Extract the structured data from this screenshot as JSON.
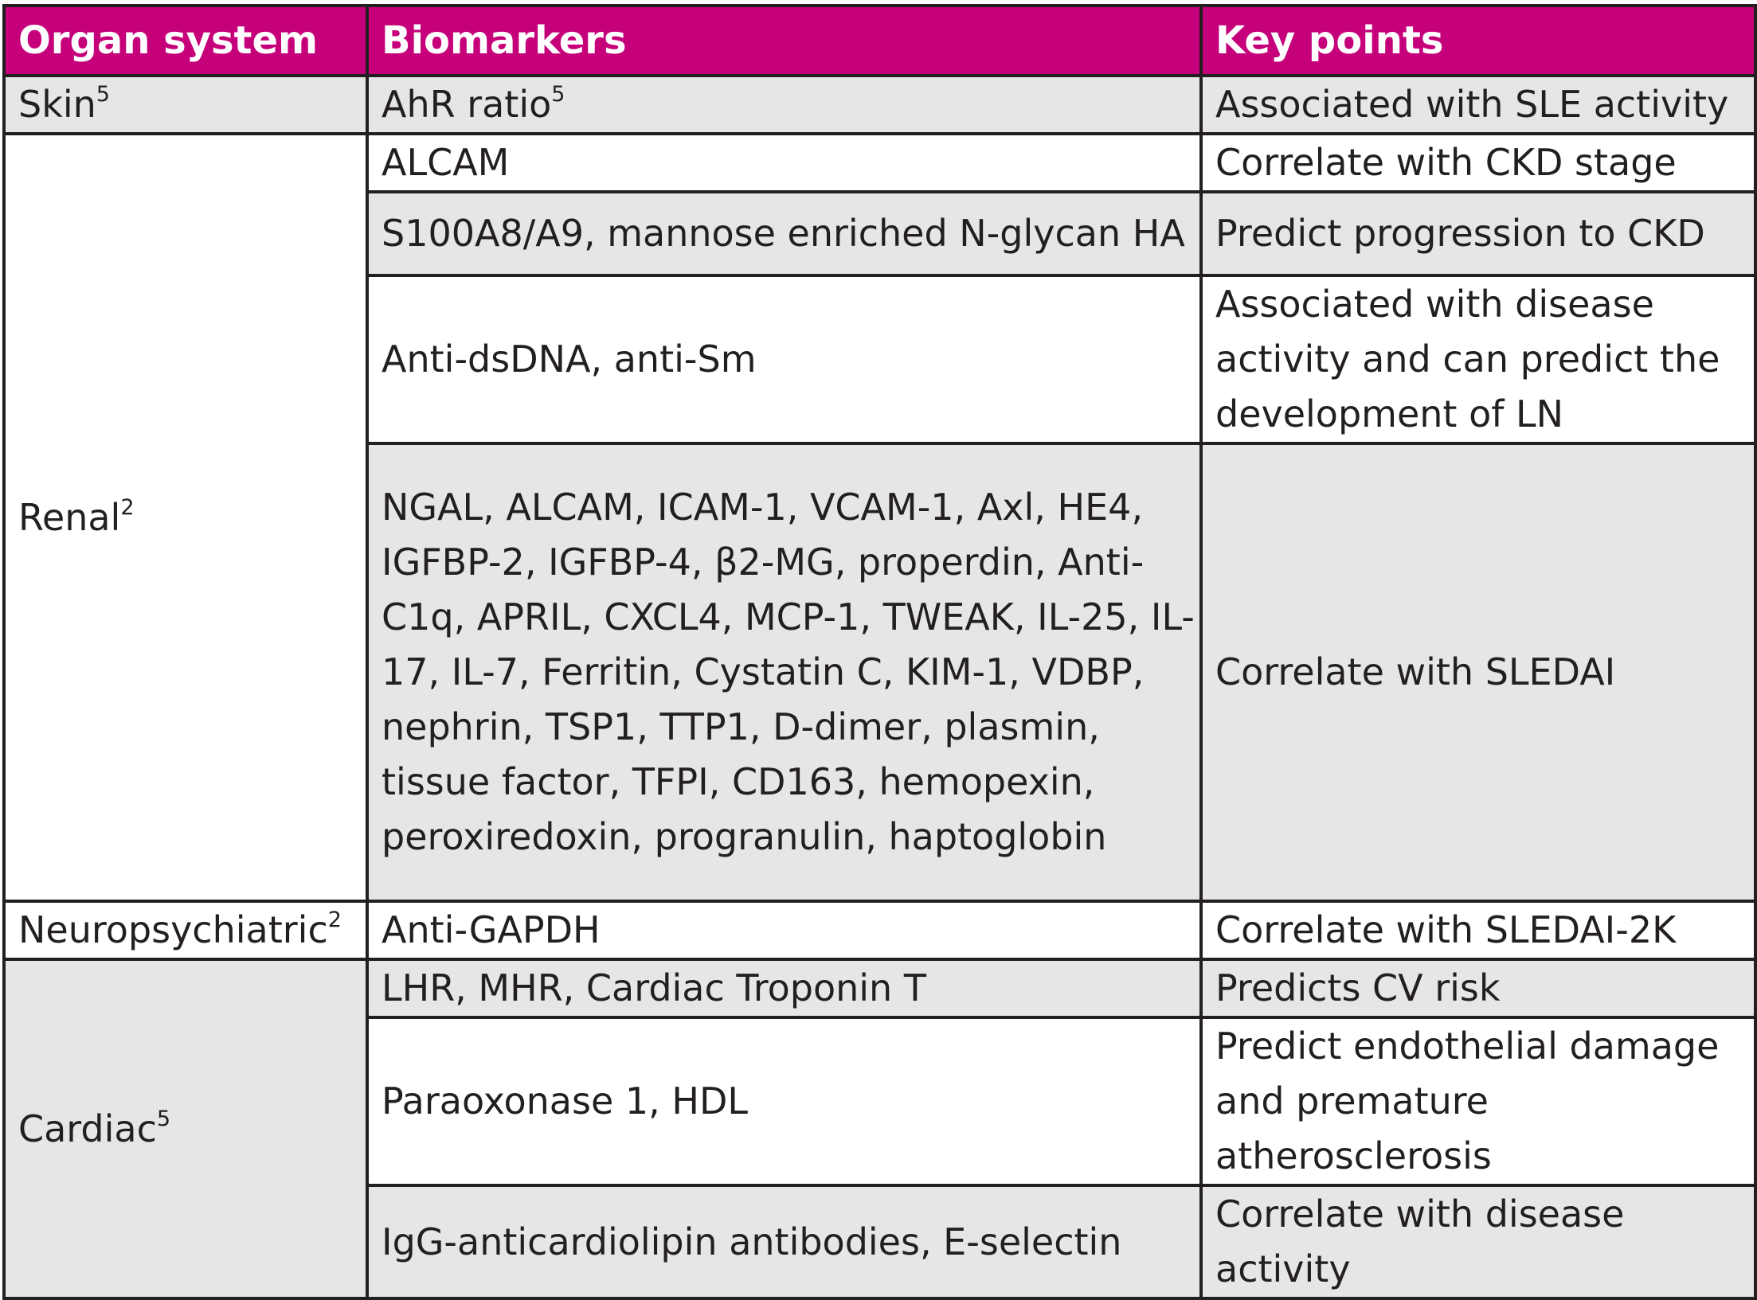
{
  "header": {
    "organ": "Organ system",
    "biomarkers": "Biomarkers",
    "keypoints": "Key points"
  },
  "rows": [
    {
      "organ": "Skin",
      "organ_ref": "5",
      "biomarkers": "AhR ratio",
      "biomarkers_ref": "5",
      "keypoints": "Associated with SLE activity"
    },
    {
      "organ": "Renal",
      "organ_ref": "2",
      "biomarkers": "ALCAM",
      "keypoints": "Correlate with CKD stage"
    },
    {
      "biomarkers": "S100A8/A9, mannose enriched N-glycan HA",
      "keypoints": "Predict progression to CKD"
    },
    {
      "biomarkers": "Anti-dsDNA, anti-Sm",
      "keypoints": "Associated with disease activity and can predict the development of LN"
    },
    {
      "biomarkers": "NGAL, ALCAM, ICAM-1, VCAM-1, Axl, HE4, IGFBP-2, IGFBP-4, β2-MG, properdin, Anti-C1q, APRIL, CXCL4, MCP-1, TWEAK, IL-25, IL-17, IL-7, Ferritin, Cystatin C, KIM-1, VDBP, nephrin, TSP1, TTP1, D-dimer, plasmin, tissue factor, TFPI, CD163, hemopexin, peroxiredoxin, progranulin, haptoglobin",
      "keypoints": "Correlate with SLEDAI"
    },
    {
      "organ": "Neuropsychiatric",
      "organ_ref": "2",
      "biomarkers": "Anti-GAPDH",
      "keypoints": "Correlate with SLEDAI-2K"
    },
    {
      "organ": "Cardiac",
      "organ_ref": "5",
      "biomarkers": "LHR, MHR, Cardiac Troponin T",
      "keypoints": "Predicts CV risk"
    },
    {
      "biomarkers": "Paraoxonase 1, HDL",
      "keypoints": "Predict endothelial damage and premature atherosclerosis"
    },
    {
      "biomarkers": "IgG-anticardiolipin antibodies, E-selectin",
      "keypoints": "Correlate with disease activity"
    }
  ],
  "colors": {
    "header_bg": "#c5007a",
    "header_text": "#ffffff",
    "shaded_cell": "#e6e6e6",
    "white_cell": "#ffffff",
    "border": "#231f20"
  }
}
